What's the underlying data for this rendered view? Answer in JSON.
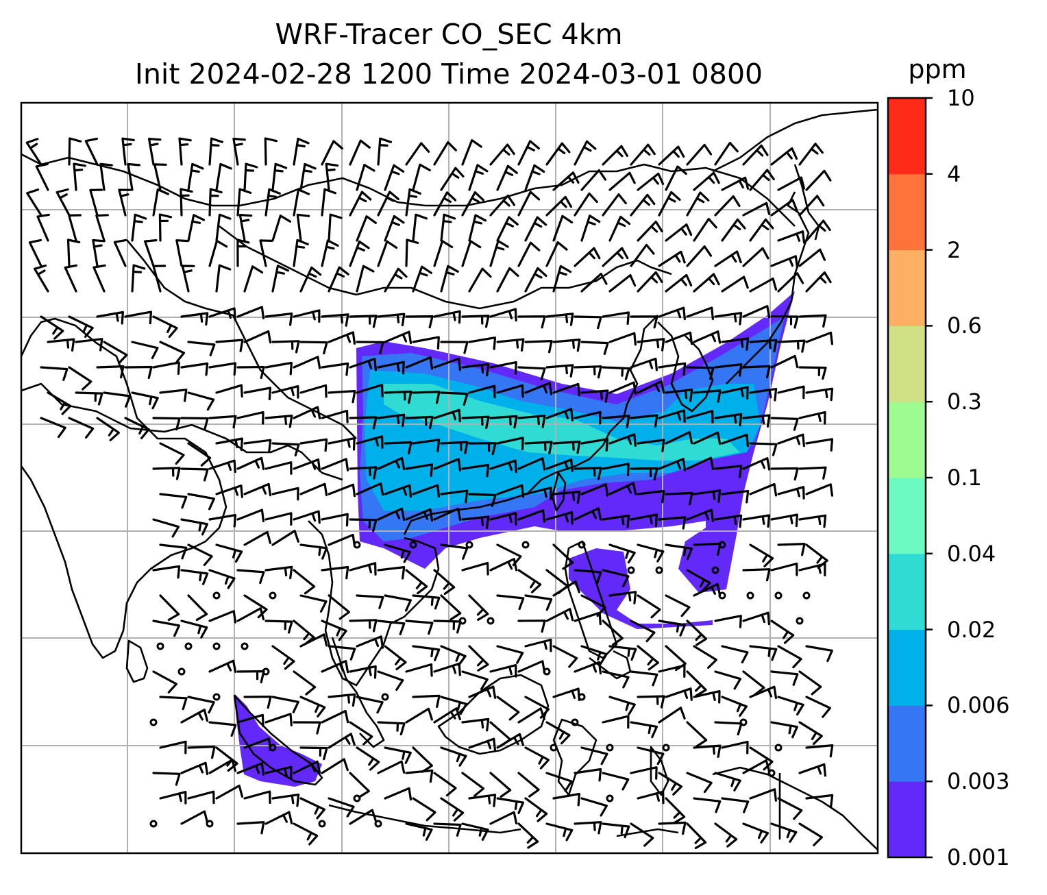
{
  "title": {
    "line1": "WRF-Tracer CO_SEC 4km",
    "line2": "Init 2024-02-28 1200 Time 2024-03-01 0800"
  },
  "colorbar": {
    "unit": "ppm",
    "levels": [
      "0.001",
      "0.003",
      "0.006",
      "0.02",
      "0.04",
      "0.1",
      "0.3",
      "0.6",
      "2",
      "4",
      "10"
    ],
    "colors": [
      "#6329f9",
      "#3476f3",
      "#00b0ea",
      "#2fdbd3",
      "#6cf9c0",
      "#9dfb92",
      "#cfe184",
      "#fdb063",
      "#ff723a",
      "#ff2a18"
    ]
  },
  "map": {
    "land_outline_color": "#000000",
    "gridline_color": "#b0b0b0",
    "tracer_colors": {
      "low": "#6329f9",
      "mid": "#3476f3",
      "high": "#00b0ea",
      "peak": "#2fdbd3"
    }
  }
}
